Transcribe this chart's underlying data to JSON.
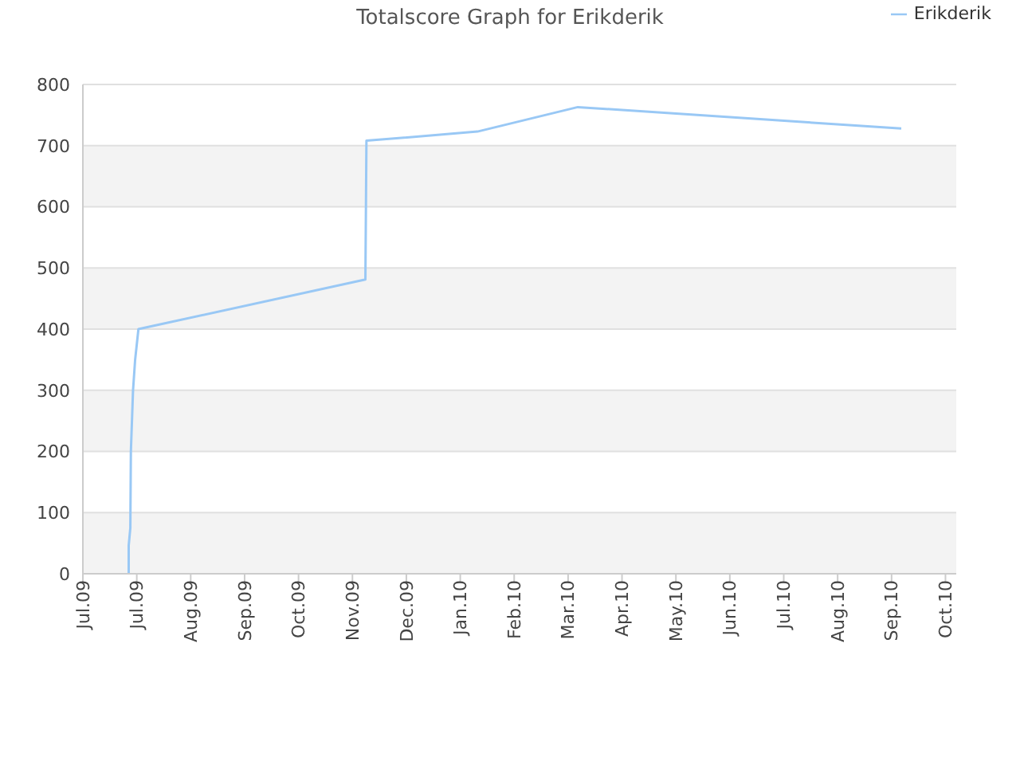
{
  "chart_data": {
    "type": "line",
    "title": "Totalscore Graph for Erikderik",
    "x": [
      "2009-07-26T12:00",
      "2009-07-26T12:00",
      "2009-07-27T10:00",
      "2009-07-27T17:00",
      "2009-07-28T22:00",
      "2009-07-30T02:00",
      "2009-07-31T22:00",
      "2009-08-05T10:00",
      "2009-12-05T05:00",
      "2009-12-05T19:00",
      "2010-02-05T14:00",
      "2010-04-02T10:00",
      "2010-09-29T10:00"
    ],
    "series": [
      {
        "name": "Erikderik",
        "color": "#99c8f5",
        "values": [
          0,
          46,
          75,
          200,
          300,
          350,
          400,
          403,
          481,
          708,
          723,
          763,
          728
        ]
      }
    ],
    "xlim": [
      "2009-07-01",
      "2010-10-30"
    ],
    "xticks": [
      {
        "value": "2009-07-01",
        "label": "Jul.09"
      },
      {
        "value": "2009-07-31",
        "label": "Jul.09"
      },
      {
        "value": "2009-08-30",
        "label": "Aug.09"
      },
      {
        "value": "2009-09-29",
        "label": "Sep.09"
      },
      {
        "value": "2009-10-29",
        "label": "Oct.09"
      },
      {
        "value": "2009-11-28",
        "label": "Nov.09"
      },
      {
        "value": "2009-12-28",
        "label": "Dec.09"
      },
      {
        "value": "2010-01-27",
        "label": "Jan.10"
      },
      {
        "value": "2010-02-26",
        "label": "Feb.10"
      },
      {
        "value": "2010-03-28",
        "label": "Mar.10"
      },
      {
        "value": "2010-04-27",
        "label": "Apr.10"
      },
      {
        "value": "2010-05-27",
        "label": "May.10"
      },
      {
        "value": "2010-06-26",
        "label": "Jun.10"
      },
      {
        "value": "2010-07-26",
        "label": "Jul.10"
      },
      {
        "value": "2010-08-25",
        "label": "Aug.10"
      },
      {
        "value": "2010-09-24",
        "label": "Sep.10"
      },
      {
        "value": "2010-10-24",
        "label": "Oct.10"
      }
    ],
    "ylim": [
      0,
      800
    ],
    "yticks": [
      0,
      100,
      200,
      300,
      400,
      500,
      600,
      700,
      800
    ],
    "grid": "y",
    "legend": "top right",
    "marker": "none",
    "line_style": "solid"
  }
}
